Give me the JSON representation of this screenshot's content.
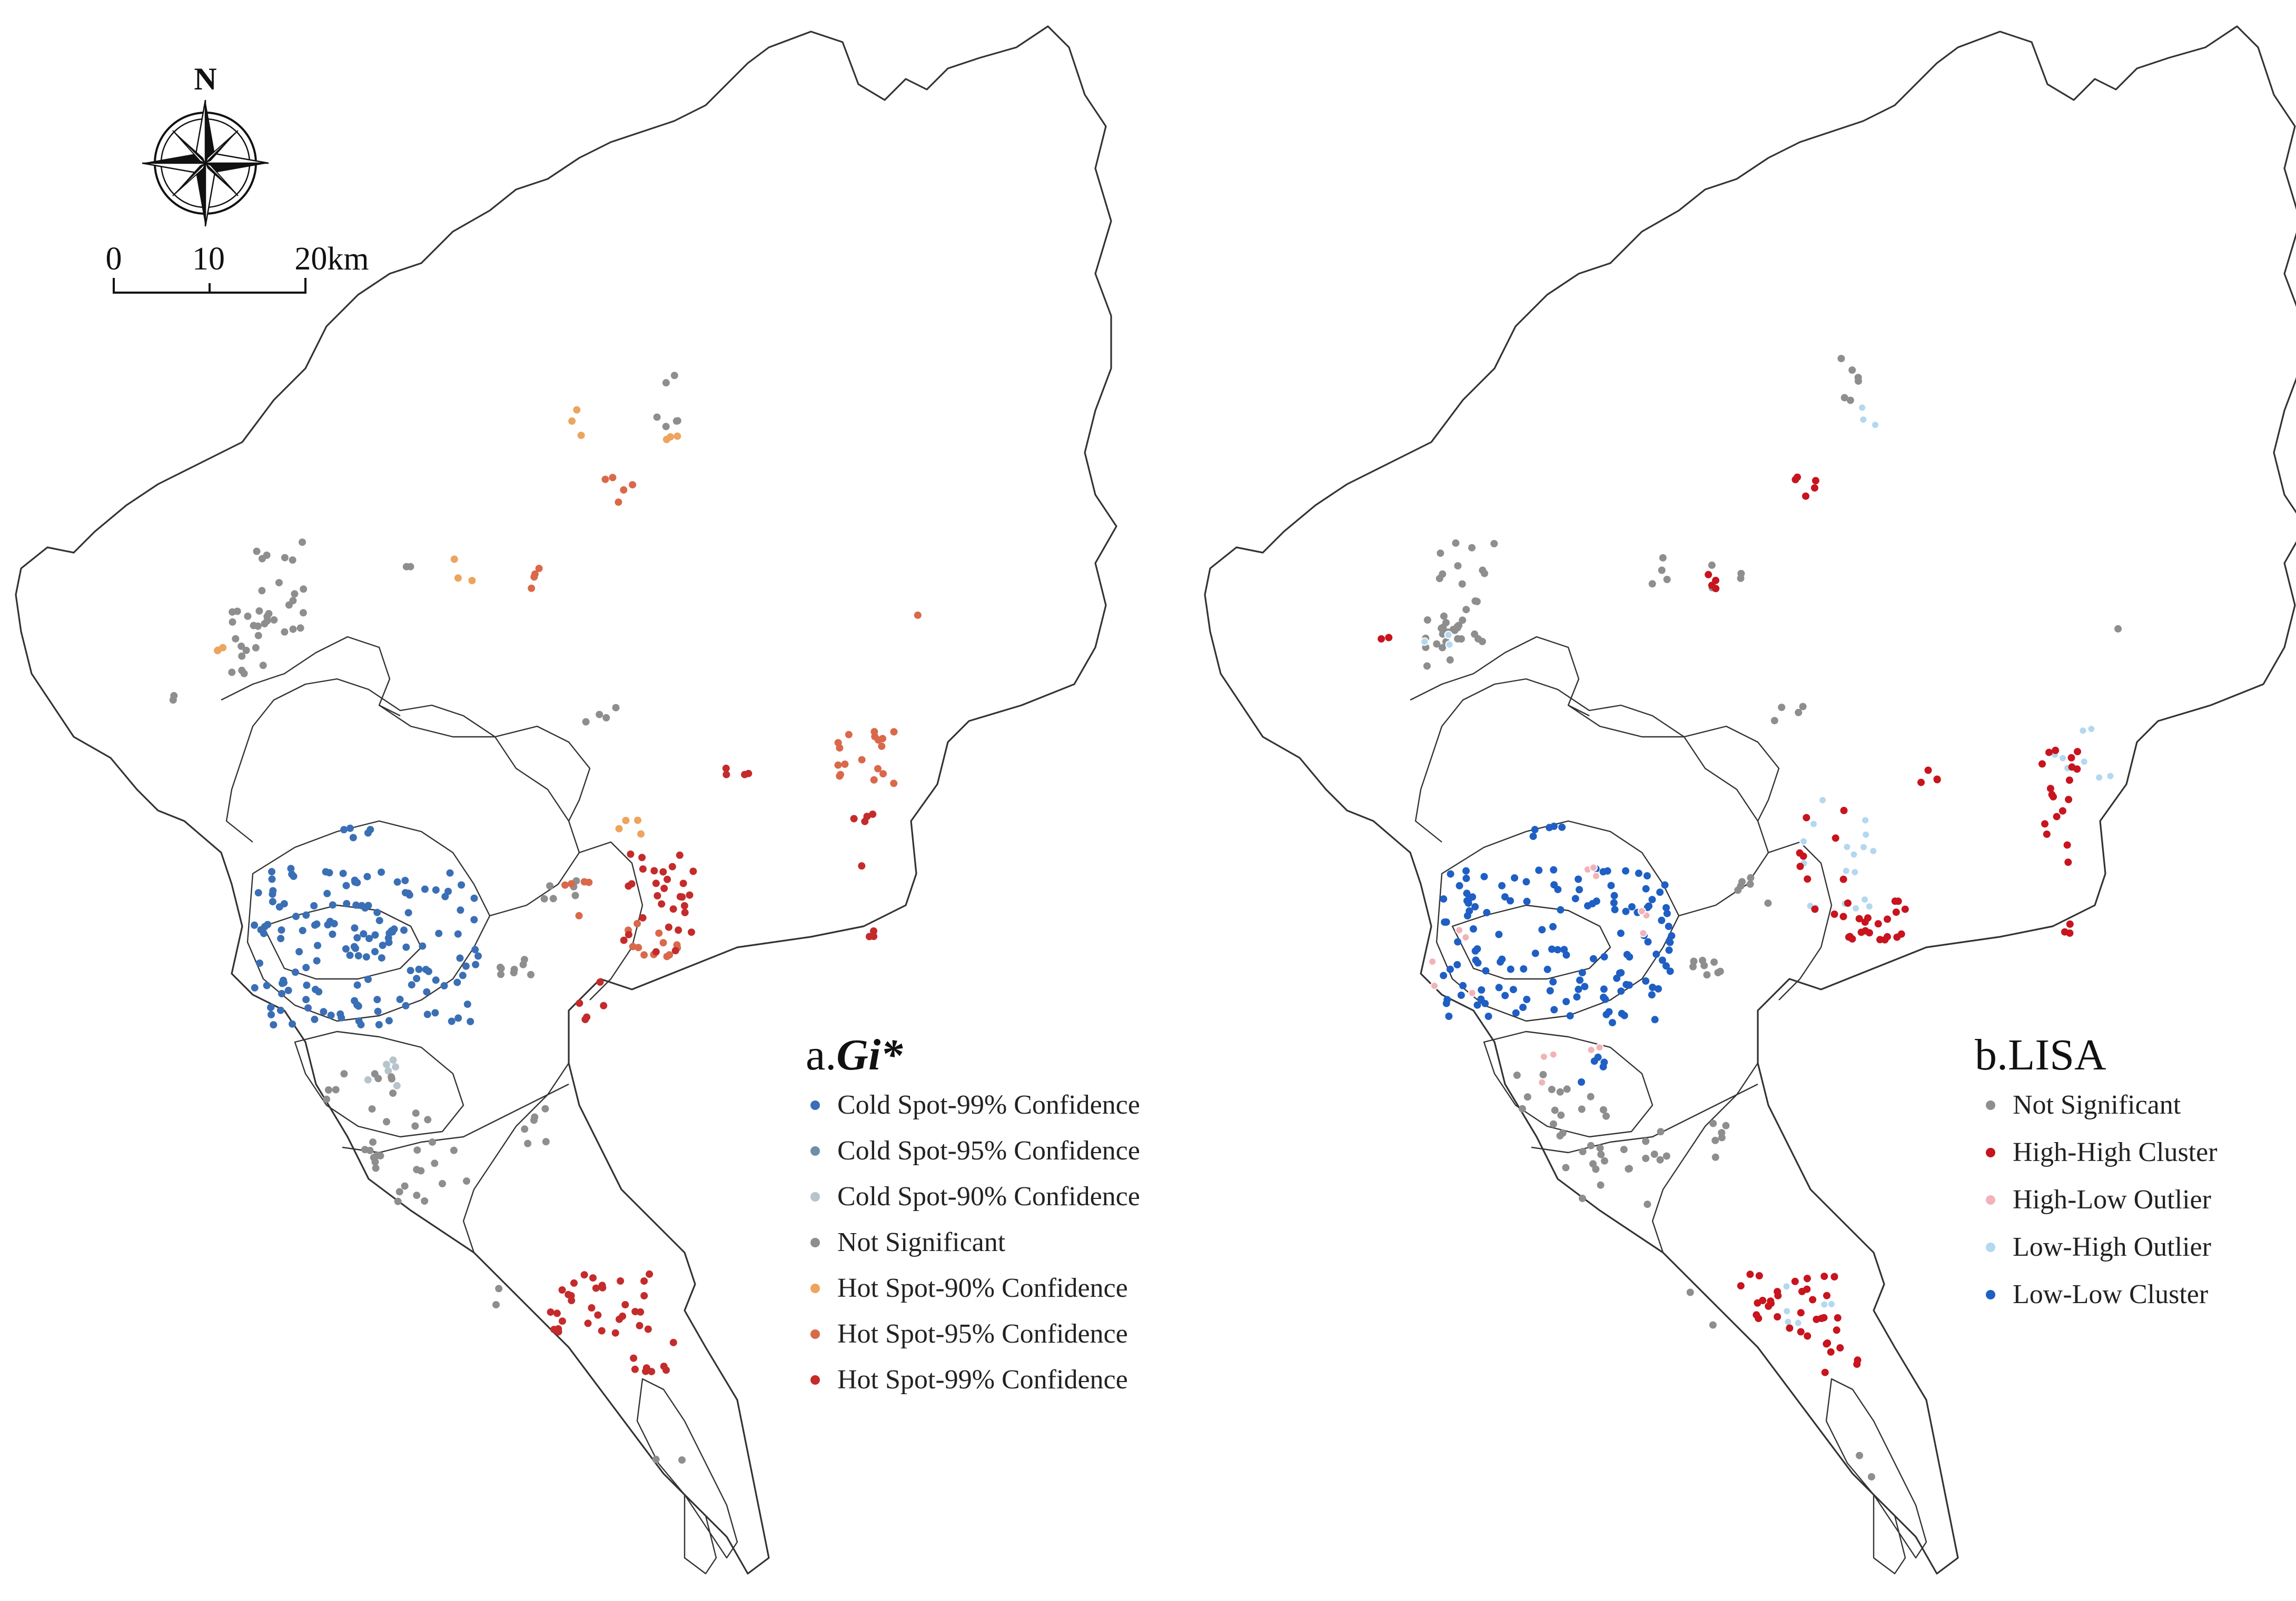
{
  "north_label": "N",
  "scale_bar": {
    "ticks": [
      "0",
      "10",
      "20km"
    ]
  },
  "colors": {
    "cold99": "#3a6fb5",
    "cold95": "#6f8fa6",
    "cold90": "#b8c4cc",
    "ns": "#8e8e8e",
    "hot90": "#eda45e",
    "hot95": "#d9694a",
    "hot99": "#c42b2b",
    "hh": "#c8141e",
    "hl": "#f2b3b8",
    "lh": "#b3d8ef",
    "ll": "#1f5fc4"
  },
  "maps": [
    {
      "id": "gi",
      "title_prefix": "a.",
      "title_em": "Gi*",
      "legend": [
        {
          "label": "Cold Spot-99% Confidence",
          "color_key": "cold99"
        },
        {
          "label": "Cold Spot-95% Confidence",
          "color_key": "cold95"
        },
        {
          "label": "Cold Spot-90% Confidence",
          "color_key": "cold90"
        },
        {
          "label": "Not Significant",
          "color_key": "ns"
        },
        {
          "label": "Hot Spot-90% Confidence",
          "color_key": "hot90"
        },
        {
          "label": "Hot Spot-95% Confidence",
          "color_key": "hot95"
        },
        {
          "label": "Hot Spot-99% Confidence",
          "color_key": "hot99"
        }
      ]
    },
    {
      "id": "lisa",
      "title_prefix": "b.LISA",
      "title_em": "",
      "legend": [
        {
          "label": "Not Significant",
          "color_key": "ns"
        },
        {
          "label": "High-High Cluster",
          "color_key": "hh"
        },
        {
          "label": "High-Low  Outlier",
          "color_key": "hl"
        },
        {
          "label": "Low-High Outlier",
          "color_key": "lh"
        },
        {
          "label": "Low-Low Cluster",
          "color_key": "ll"
        }
      ]
    }
  ]
}
